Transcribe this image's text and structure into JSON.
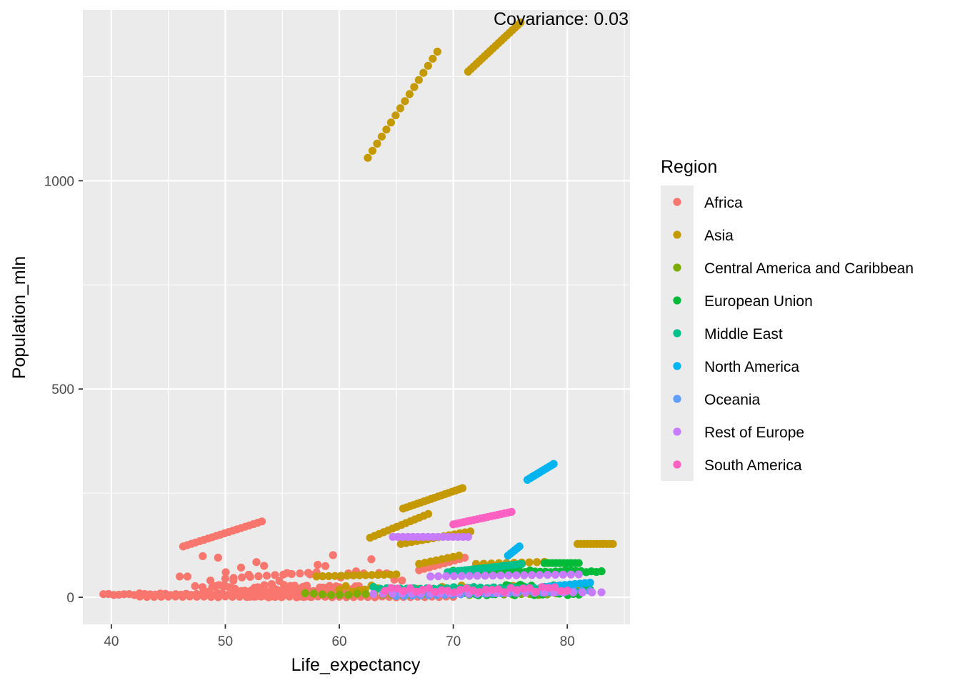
{
  "chart_data": {
    "type": "scatter",
    "title": "",
    "xlabel": "Life_expectancy",
    "ylabel": "Population_mln",
    "xlim": [
      37.5,
      85.5
    ],
    "ylim": [
      -65,
      1410
    ],
    "x_ticks": [
      40,
      50,
      60,
      70,
      80
    ],
    "y_ticks": [
      0,
      500,
      1000
    ],
    "grid": true,
    "annotation": "Covariance: 0.03",
    "legend": {
      "title": "Region",
      "placement": "right",
      "entries": [
        {
          "name": "Africa",
          "color": "#F8766D"
        },
        {
          "name": "Asia",
          "color": "#C49A00"
        },
        {
          "name": "Central America and Caribbean",
          "color": "#7CAE00"
        },
        {
          "name": "European Union",
          "color": "#00BA38"
        },
        {
          "name": "Middle East",
          "color": "#00C08B"
        },
        {
          "name": "North America",
          "color": "#00B4EF"
        },
        {
          "name": "Oceania",
          "color": "#619CFF"
        },
        {
          "name": "Rest of Europe",
          "color": "#C77CFF"
        },
        {
          "name": "South America",
          "color": "#FF61C3"
        }
      ]
    },
    "series": [
      {
        "name": "Africa",
        "segments": [
          {
            "from": [
              46.3,
              122
            ],
            "to": [
              53.2,
              182
            ],
            "n": 20
          },
          {
            "from": [
              39.3,
              5
            ],
            "to": [
              57,
              10
            ],
            "n": 40
          },
          {
            "from": [
              46,
              20
            ],
            "to": [
              65.5,
              105
            ],
            "n": 30
          },
          {
            "from": [
              48,
              8
            ],
            "to": [
              62,
              30
            ],
            "n": 50
          },
          {
            "from": [
              50,
              45
            ],
            "to": [
              58,
              60
            ],
            "n": 12
          },
          {
            "from": [
              52,
              0
            ],
            "to": [
              60,
              25
            ],
            "n": 50
          },
          {
            "from": [
              67,
              65
            ],
            "to": [
              71,
              95
            ],
            "n": 10
          },
          {
            "from": [
              42.5,
              0
            ],
            "to": [
              70,
              2
            ],
            "n": 45
          }
        ]
      },
      {
        "name": "Asia",
        "segments": [
          {
            "from": [
              62.5,
              1055
            ],
            "to": [
              68.6,
              1310
            ],
            "n": 16
          },
          {
            "from": [
              71.3,
              1262
            ],
            "to": [
              75.9,
              1380
            ],
            "n": 20
          },
          {
            "from": [
              62.7,
              143
            ],
            "to": [
              67.8,
              200
            ],
            "n": 14
          },
          {
            "from": [
              65.6,
              213
            ],
            "to": [
              70.8,
              262
            ],
            "n": 18
          },
          {
            "from": [
              65.4,
              128
            ],
            "to": [
              71.5,
              158
            ],
            "n": 14
          },
          {
            "from": [
              80.9,
              128
            ],
            "to": [
              84,
              128
            ],
            "n": 12
          },
          {
            "from": [
              67,
              80
            ],
            "to": [
              70.5,
              100
            ],
            "n": 8
          },
          {
            "from": [
              72,
              80
            ],
            "to": [
              78,
              85
            ],
            "n": 10
          },
          {
            "from": [
              58,
              50
            ],
            "to": [
              65,
              55
            ],
            "n": 14
          },
          {
            "from": [
              60,
              10
            ],
            "to": [
              82,
              30
            ],
            "n": 40
          }
        ]
      },
      {
        "name": "Central America and Caribbean",
        "segments": [
          {
            "from": [
              57,
              5
            ],
            "to": [
              79,
              10
            ],
            "n": 30
          }
        ]
      },
      {
        "name": "European Union",
        "segments": [
          {
            "from": [
              70,
              60
            ],
            "to": [
              83,
              65
            ],
            "n": 30
          },
          {
            "from": [
              78,
              82
            ],
            "to": [
              81,
              82
            ],
            "n": 10
          },
          {
            "from": [
              70,
              5
            ],
            "to": [
              82,
              30
            ],
            "n": 50
          }
        ]
      },
      {
        "name": "Middle East",
        "segments": [
          {
            "from": [
              69.5,
              60
            ],
            "to": [
              76,
              80
            ],
            "n": 22
          },
          {
            "from": [
              63,
              20
            ],
            "to": [
              80,
              25
            ],
            "n": 30
          }
        ]
      },
      {
        "name": "North America",
        "segments": [
          {
            "from": [
              76.5,
              282
            ],
            "to": [
              78.8,
              320
            ],
            "n": 12
          },
          {
            "from": [
              74.8,
              100
            ],
            "to": [
              75.8,
              122
            ],
            "n": 6
          },
          {
            "from": [
              78,
              25
            ],
            "to": [
              82,
              35
            ],
            "n": 10
          }
        ]
      },
      {
        "name": "Oceania",
        "segments": [
          {
            "from": [
              65,
              3
            ],
            "to": [
              82,
              15
            ],
            "n": 25
          }
        ]
      },
      {
        "name": "Rest of Europe",
        "segments": [
          {
            "from": [
              64.7,
              145
            ],
            "to": [
              71.3,
              145
            ],
            "n": 16
          },
          {
            "from": [
              68,
              50
            ],
            "to": [
              81,
              55
            ],
            "n": 20
          },
          {
            "from": [
              63,
              8
            ],
            "to": [
              83,
              12
            ],
            "n": 25
          }
        ]
      },
      {
        "name": "South America",
        "segments": [
          {
            "from": [
              70,
              175
            ],
            "to": [
              75.1,
              205
            ],
            "n": 18
          },
          {
            "from": [
              64,
              12
            ],
            "to": [
              80,
              25
            ],
            "n": 30
          }
        ]
      }
    ]
  }
}
